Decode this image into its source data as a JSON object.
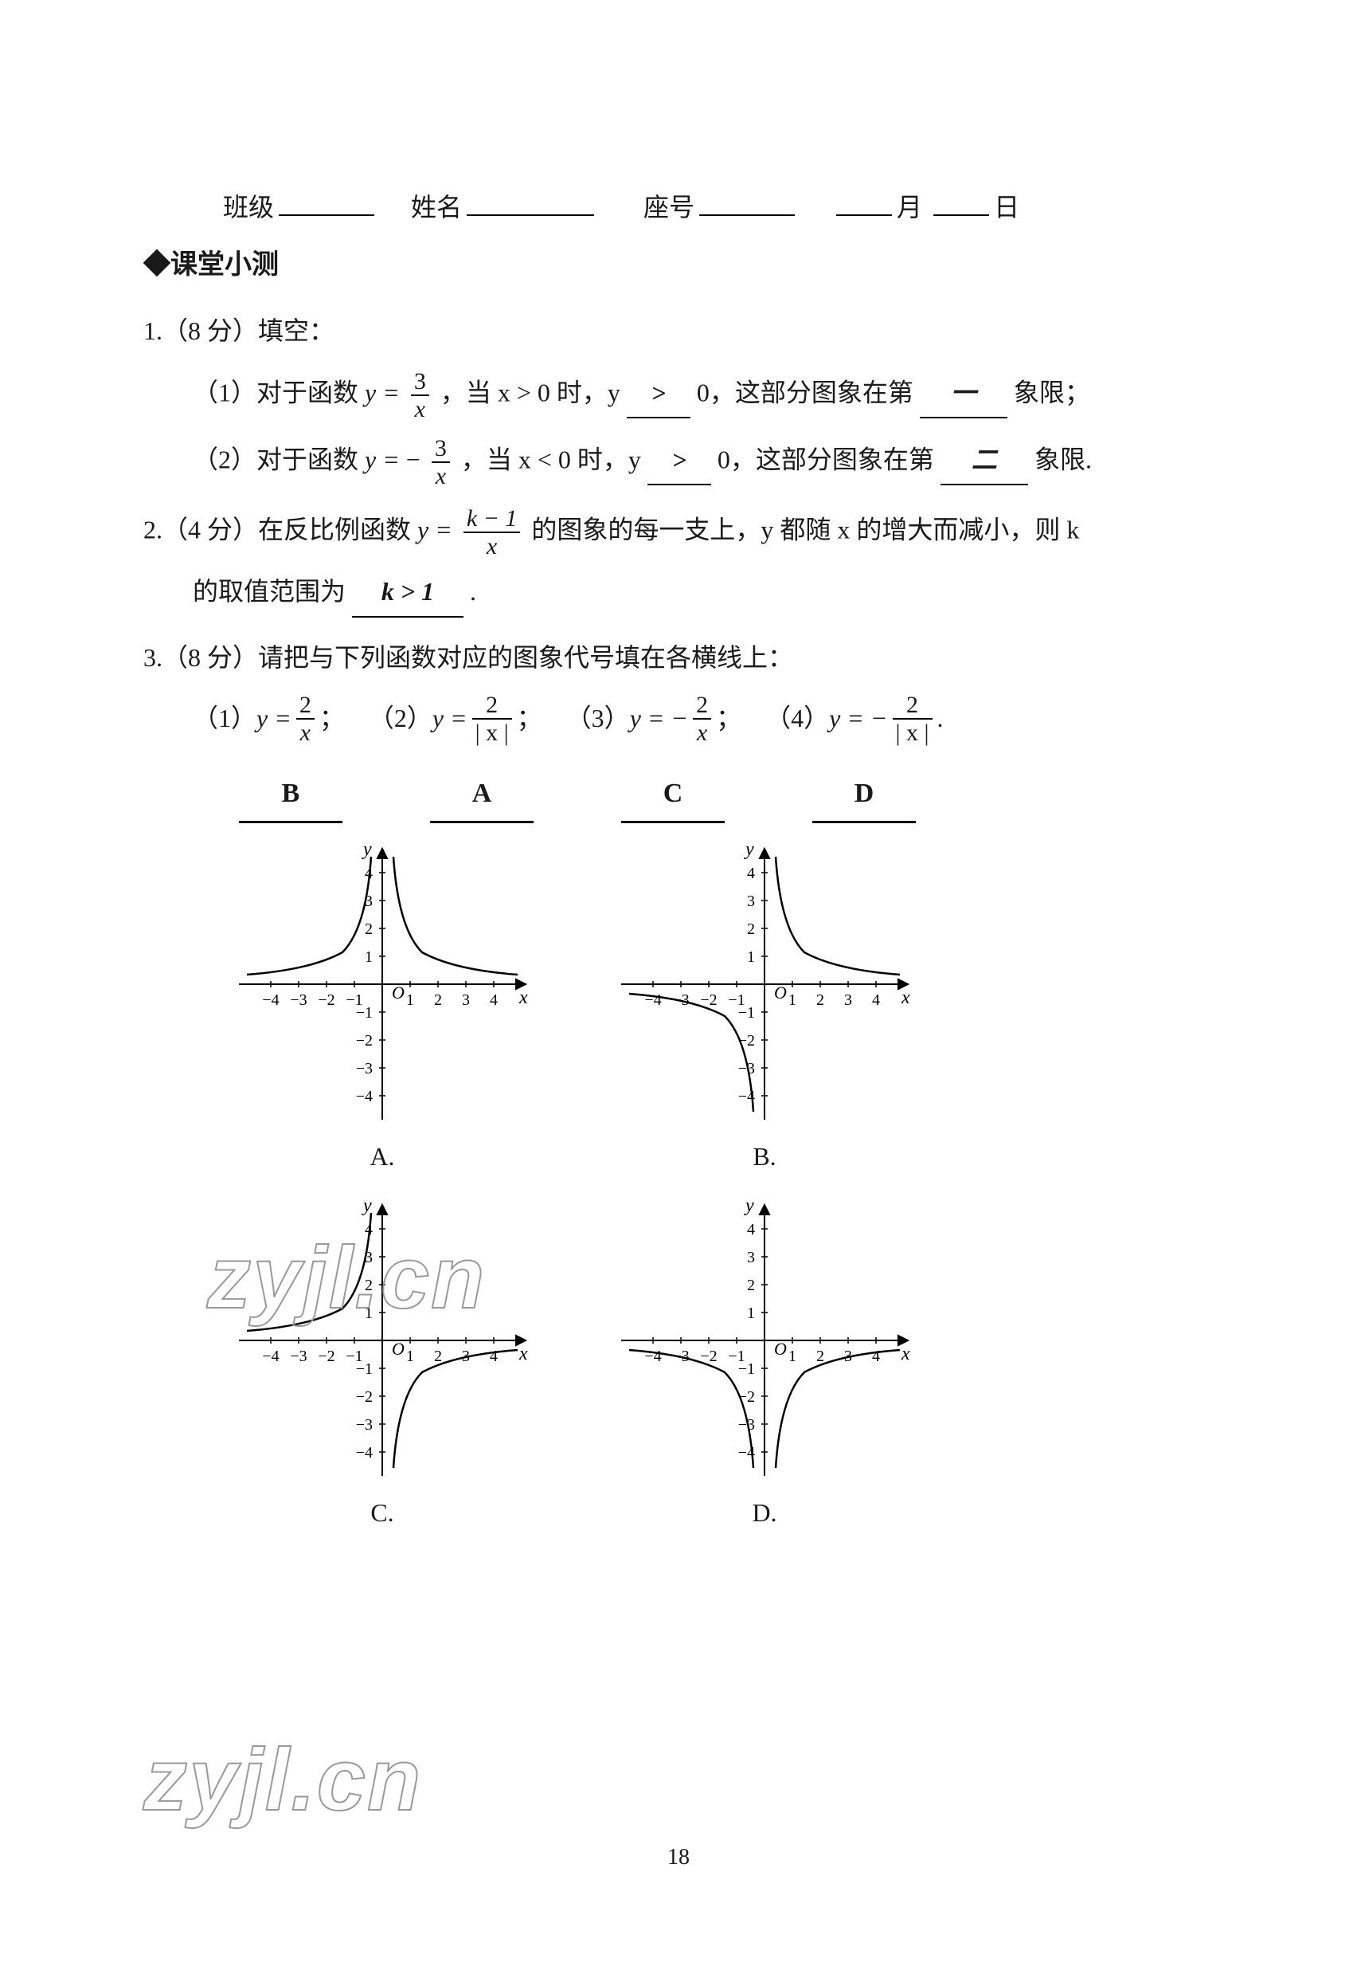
{
  "header": {
    "class_label": "班级",
    "name_label": "姓名",
    "seat_label": "座号",
    "month_label": "月",
    "day_label": "日"
  },
  "section_title": "◆课堂小测",
  "q1": {
    "prefix": "1.（8 分）填空：",
    "part1_a": "（1）对于函数",
    "frac1_num": "3",
    "frac1_den": "x",
    "part1_b": "，当 x > 0 时，y",
    "ans1": ">",
    "part1_c": "0，这部分图象在第",
    "ans1b": "一",
    "part1_d": "象限；",
    "part2_a": "（2）对于函数",
    "frac2_num": "3",
    "frac2_den": "x",
    "neg": "−",
    "part2_b": "，当 x < 0 时，y",
    "ans2": ">",
    "part2_c": "0，这部分图象在第",
    "ans2b": "二",
    "part2_d": "象限."
  },
  "q2": {
    "prefix": "2.（4 分）在反比例函数",
    "frac_num": "k − 1",
    "frac_den": "x",
    "mid": "的图象的每一支上，y 都随 x 的增大而减小，则 k",
    "line2": "的取值范围为",
    "ans": "k > 1",
    "tail": "."
  },
  "q3": {
    "prefix": "3.（8 分）请把与下列函数对应的图象代号填在各横线上：",
    "items": [
      {
        "label": "（1）",
        "eq_lhs": "y =",
        "num": "2",
        "den": "x",
        "tail": "；"
      },
      {
        "label": "（2）",
        "eq_lhs": "y =",
        "num": "2",
        "den": "| x |",
        "tail": "；"
      },
      {
        "label": "（3）",
        "eq_lhs": "y = −",
        "num": "2",
        "den": "x",
        "tail": "；"
      },
      {
        "label": "（4）",
        "eq_lhs": "y = −",
        "num": "2",
        "den": "| x |",
        "tail": "."
      }
    ],
    "answers": [
      "B",
      "A",
      "C",
      "D"
    ]
  },
  "charts": {
    "labels": [
      "A.",
      "B.",
      "C.",
      "D."
    ],
    "axis": {
      "x_ticks": [
        -4,
        -3,
        -2,
        -1,
        1,
        2,
        3,
        4
      ],
      "y_ticks": [
        -4,
        -3,
        -2,
        -1,
        1,
        2,
        3,
        4
      ],
      "xlabel": "x",
      "ylabel": "y",
      "origin": "O",
      "range": [
        -5,
        5
      ],
      "stroke": "#000000",
      "tick_font": 20
    },
    "A": {
      "type": "abs_reciprocal_pos",
      "curves": [
        {
          "domain": "neg",
          "sign": "pos"
        },
        {
          "domain": "pos",
          "sign": "pos"
        }
      ]
    },
    "B": {
      "type": "reciprocal_pos",
      "curves": [
        {
          "domain": "pos",
          "sign": "pos"
        },
        {
          "domain": "neg",
          "sign": "neg"
        }
      ]
    },
    "C": {
      "type": "reciprocal_neg",
      "curves": [
        {
          "domain": "neg",
          "sign": "pos"
        },
        {
          "domain": "pos",
          "sign": "neg"
        }
      ]
    },
    "D": {
      "type": "abs_reciprocal_neg",
      "curves": [
        {
          "domain": "neg",
          "sign": "neg"
        },
        {
          "domain": "pos",
          "sign": "neg"
        }
      ]
    }
  },
  "page_number": "18",
  "watermark": "zyjl.cn"
}
